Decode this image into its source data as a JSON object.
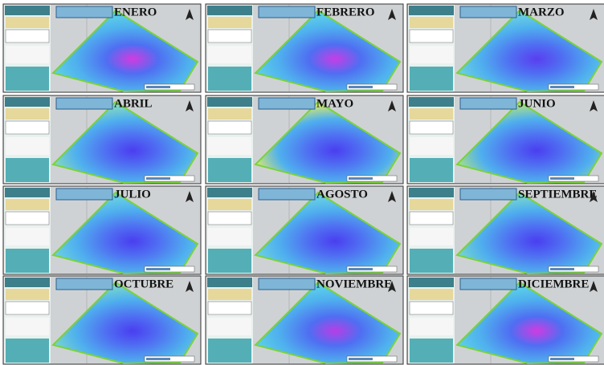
{
  "panels": [
    {
      "month": "ENERO"
    },
    {
      "month": "FEBRERO"
    },
    {
      "month": "MARZO"
    },
    {
      "month": "ABRIL"
    },
    {
      "month": "MAYO"
    },
    {
      "month": "JUNIO"
    },
    {
      "month": "JULIO"
    },
    {
      "month": "AGOSTO"
    },
    {
      "month": "SEPTIEMBRE"
    },
    {
      "month": "OCTUBRE"
    },
    {
      "month": "NOVIEMBRE"
    },
    {
      "month": "DICIEMBRE"
    }
  ]
}
